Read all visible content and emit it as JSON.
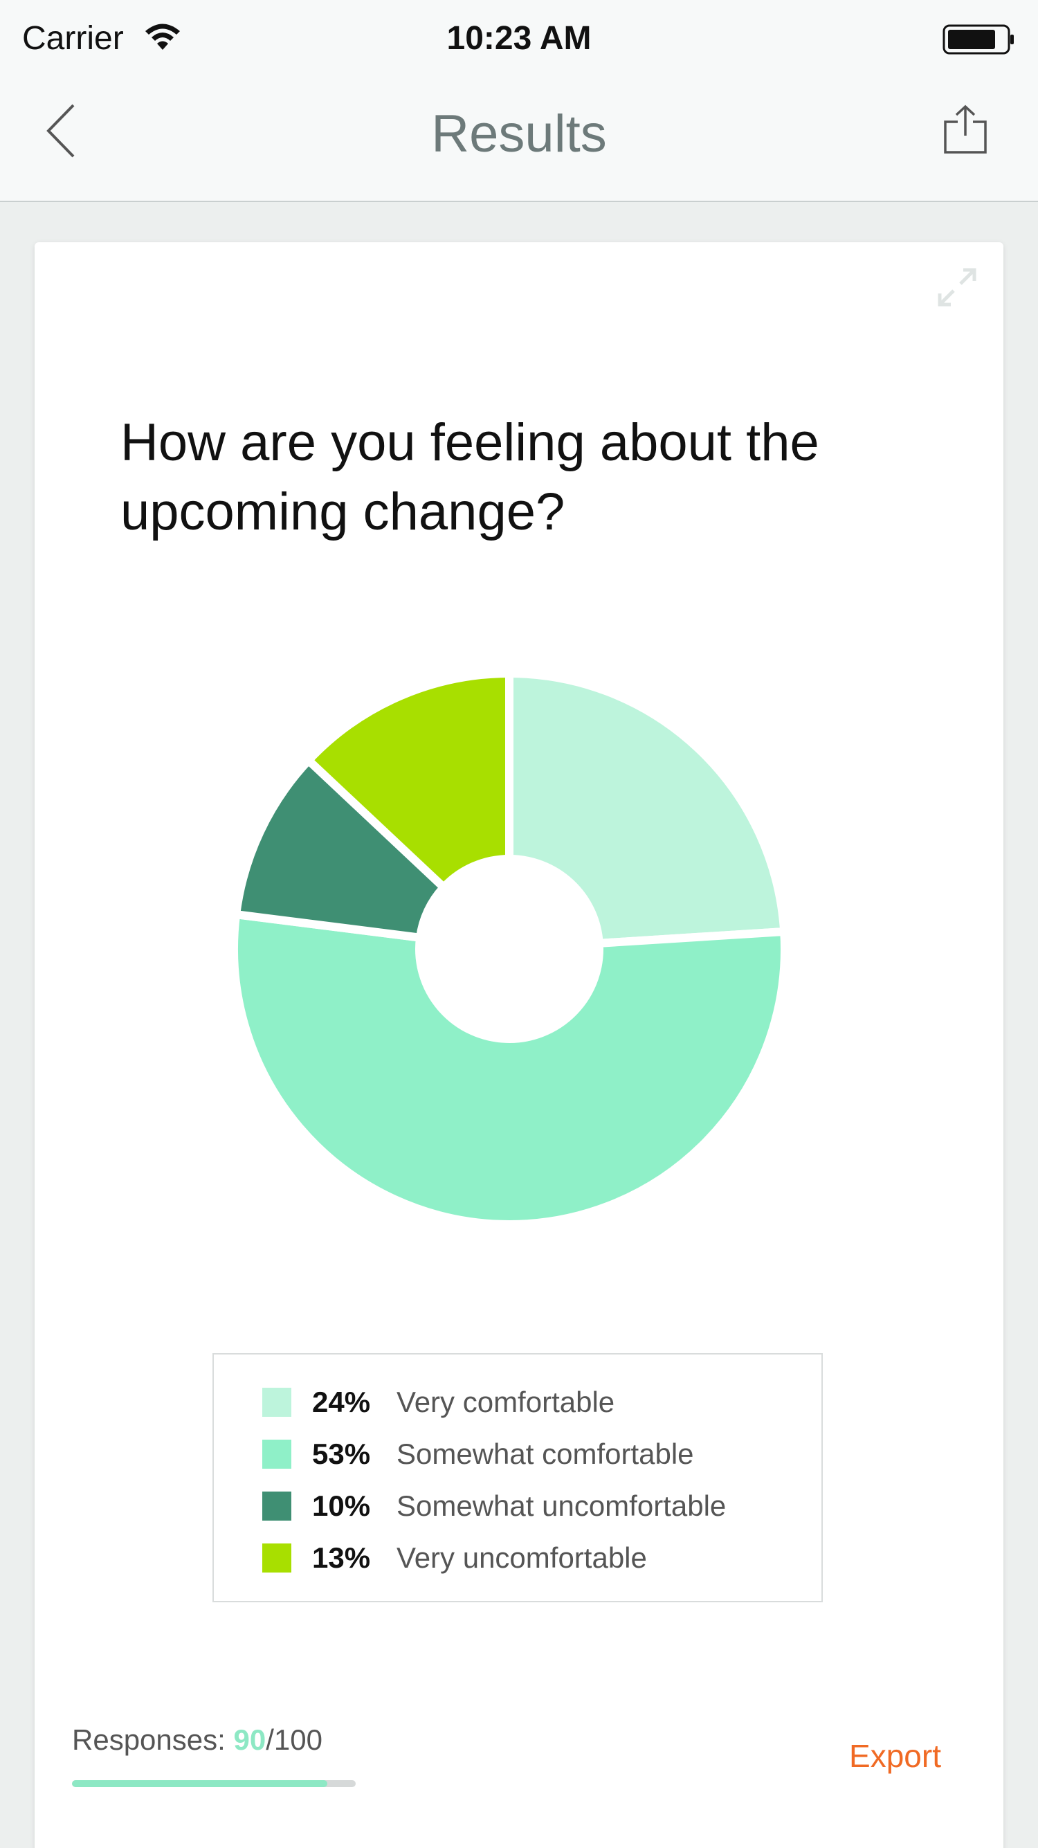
{
  "status_bar": {
    "carrier": "Carrier",
    "time": "10:23 AM",
    "wifi_icon": "wifi-icon",
    "battery_icon": "battery-icon"
  },
  "nav": {
    "title": "Results",
    "back_icon": "chevron-left-icon",
    "share_icon": "share-icon"
  },
  "card": {
    "expand_icon": "expand-icon",
    "question": "How are you feeling about the upcoming change?"
  },
  "chart_data": {
    "type": "pie",
    "donut": true,
    "title": "",
    "slices": [
      {
        "label": "Very comfortable",
        "value": 24,
        "display": "24%",
        "color": "#bdf4dc"
      },
      {
        "label": "Somewhat comfortable",
        "value": 53,
        "display": "53%",
        "color": "#8ff0c8"
      },
      {
        "label": "Somewhat uncomfortable",
        "value": 10,
        "display": "10%",
        "color": "#3f8f73"
      },
      {
        "label": "Very uncomfortable",
        "value": 13,
        "display": "13%",
        "color": "#a8df00"
      }
    ],
    "legend_position": "bottom"
  },
  "footer": {
    "responses_label": "Responses: ",
    "responses_count": "90",
    "responses_total": "/100",
    "progress": 0.9,
    "export_label": "Export"
  },
  "colors": {
    "accent": "#8de8c4",
    "export": "#f06a24",
    "nav_title": "#6d7a7a"
  }
}
